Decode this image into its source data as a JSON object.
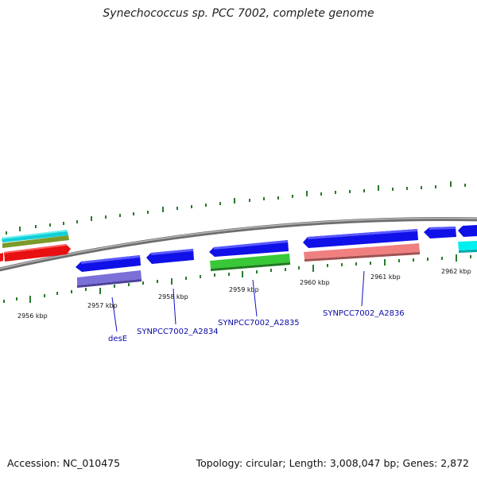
{
  "title": "Synechococcus sp. PCC 7002, complete genome",
  "footer": {
    "accession": "Accession: NC_010475",
    "stats": "Topology: circular; Length: 3,008,047 bp; Genes: 2,872"
  },
  "scale_labels": [
    {
      "id": "kbp-2956",
      "text": "2956 kbp"
    },
    {
      "id": "kbp-2957",
      "text": "2957 kbp"
    },
    {
      "id": "kbp-2958",
      "text": "2958 kbp"
    },
    {
      "id": "kbp-2959",
      "text": "2959 kbp"
    },
    {
      "id": "kbp-2960",
      "text": "2960 kbp"
    },
    {
      "id": "kbp-2961",
      "text": "2961 kbp"
    },
    {
      "id": "kbp-2962",
      "text": "2962 kbp"
    }
  ],
  "gene_labels": [
    {
      "id": "gene-label-desE",
      "text": "desE"
    },
    {
      "id": "gene-label-a2834",
      "text": "SYNPCC7002_A2834"
    },
    {
      "id": "gene-label-a2835",
      "text": "SYNPCC7002_A2835"
    },
    {
      "id": "gene-label-a2836",
      "text": "SYNPCC7002_A2836"
    }
  ],
  "colors": {
    "backbone": "#8a8a8a",
    "cds_forward": "#1010e8",
    "cds_reverse": "#1010e8",
    "rna": "#e81010",
    "cog_cyan": "#10d8e0",
    "cog_olive": "#7a9a2a",
    "cog_purple": "#7a70d8",
    "cog_green": "#38c838",
    "cog_salmon": "#f08080",
    "cog_cyan_bright": "#00f0f0",
    "ticks": "#2a7a2a",
    "label": "#0a0aa8"
  }
}
